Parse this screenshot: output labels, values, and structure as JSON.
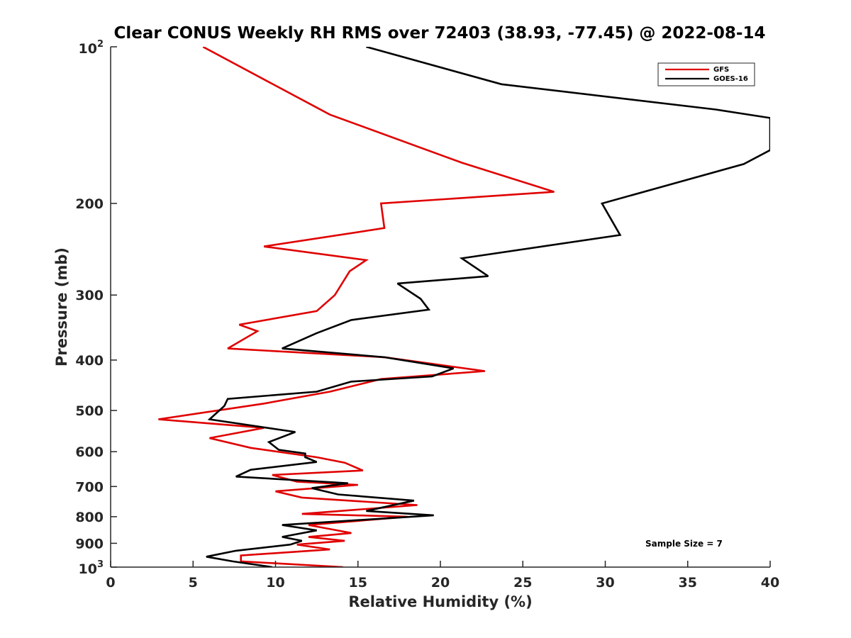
{
  "chart_data": {
    "type": "line",
    "title": "Clear CONUS Weekly RH RMS over 72403 (38.93, -77.45) @ 2022-08-14",
    "xlabel": "Relative Humidity (%)",
    "ylabel": "Pressure (mb)",
    "xlim": [
      0,
      40
    ],
    "ylim": [
      100,
      1000
    ],
    "y_scale": "log",
    "y_reversed": true,
    "grid": false,
    "legend_position": "top-right",
    "annotation": "Sample Size = 7",
    "x_ticks": [
      0,
      5,
      10,
      15,
      20,
      25,
      30,
      35,
      40
    ],
    "y_ticks": [
      {
        "value": 100,
        "base": "10",
        "exp": "2"
      },
      {
        "value": 200,
        "label": "200"
      },
      {
        "value": 300,
        "label": "300"
      },
      {
        "value": 400,
        "label": "400"
      },
      {
        "value": 500,
        "label": "500"
      },
      {
        "value": 600,
        "label": "600"
      },
      {
        "value": 700,
        "label": "700"
      },
      {
        "value": 800,
        "label": "800"
      },
      {
        "value": 900,
        "label": "900"
      },
      {
        "value": 1000,
        "base": "10",
        "exp": "3"
      }
    ],
    "series": [
      {
        "name": "GFS",
        "color": "#e00000",
        "points": [
          [
            5.6,
            100
          ],
          [
            13.3,
            135
          ],
          [
            21.3,
            167
          ],
          [
            26.9,
            190
          ],
          [
            16.4,
            200
          ],
          [
            16.6,
            223
          ],
          [
            9.3,
            242
          ],
          [
            15.5,
            257
          ],
          [
            14.5,
            270
          ],
          [
            13.6,
            300
          ],
          [
            12.5,
            322
          ],
          [
            7.8,
            342
          ],
          [
            8.9,
            352
          ],
          [
            7.1,
            380
          ],
          [
            16.6,
            395
          ],
          [
            22.7,
            420
          ],
          [
            16.4,
            435
          ],
          [
            13.3,
            460
          ],
          [
            9.3,
            485
          ],
          [
            2.9,
            520
          ],
          [
            9.3,
            540
          ],
          [
            6.0,
            565
          ],
          [
            8.5,
            590
          ],
          [
            12.5,
            615
          ],
          [
            14.2,
            630
          ],
          [
            15.3,
            652
          ],
          [
            9.8,
            665
          ],
          [
            11.3,
            685
          ],
          [
            15.0,
            695
          ],
          [
            10.0,
            715
          ],
          [
            11.6,
            735
          ],
          [
            18.6,
            760
          ],
          [
            11.6,
            790
          ],
          [
            18.0,
            800
          ],
          [
            12.0,
            830
          ],
          [
            14.6,
            860
          ],
          [
            12.0,
            875
          ],
          [
            14.2,
            890
          ],
          [
            11.3,
            905
          ],
          [
            13.3,
            925
          ],
          [
            7.9,
            950
          ],
          [
            7.9,
            975
          ],
          [
            14.1,
            1000
          ]
        ]
      },
      {
        "name": "GOES-16",
        "color": "#000000",
        "points": [
          [
            15.5,
            100
          ],
          [
            23.7,
            118
          ],
          [
            36.7,
            132
          ],
          [
            40.0,
            137
          ],
          [
            40.0,
            158
          ],
          [
            38.4,
            168
          ],
          [
            29.8,
            200
          ],
          [
            30.9,
            230
          ],
          [
            21.3,
            255
          ],
          [
            22.9,
            276
          ],
          [
            17.4,
            285
          ],
          [
            18.8,
            305
          ],
          [
            19.3,
            320
          ],
          [
            14.6,
            335
          ],
          [
            12.5,
            355
          ],
          [
            10.4,
            380
          ],
          [
            16.6,
            395
          ],
          [
            20.8,
            415
          ],
          [
            19.5,
            430
          ],
          [
            14.6,
            440
          ],
          [
            12.5,
            460
          ],
          [
            7.1,
            475
          ],
          [
            6.9,
            490
          ],
          [
            6.0,
            520
          ],
          [
            11.2,
            550
          ],
          [
            9.6,
            575
          ],
          [
            10.2,
            595
          ],
          [
            11.8,
            605
          ],
          [
            11.8,
            615
          ],
          [
            12.5,
            628
          ],
          [
            8.5,
            650
          ],
          [
            7.6,
            670
          ],
          [
            14.4,
            690
          ],
          [
            12.2,
            705
          ],
          [
            13.8,
            725
          ],
          [
            18.4,
            745
          ],
          [
            15.5,
            780
          ],
          [
            19.6,
            795
          ],
          [
            10.4,
            830
          ],
          [
            12.5,
            850
          ],
          [
            10.4,
            875
          ],
          [
            11.6,
            890
          ],
          [
            10.9,
            905
          ],
          [
            7.6,
            930
          ],
          [
            5.8,
            955
          ],
          [
            7.4,
            975
          ],
          [
            9.8,
            1000
          ]
        ]
      }
    ]
  }
}
